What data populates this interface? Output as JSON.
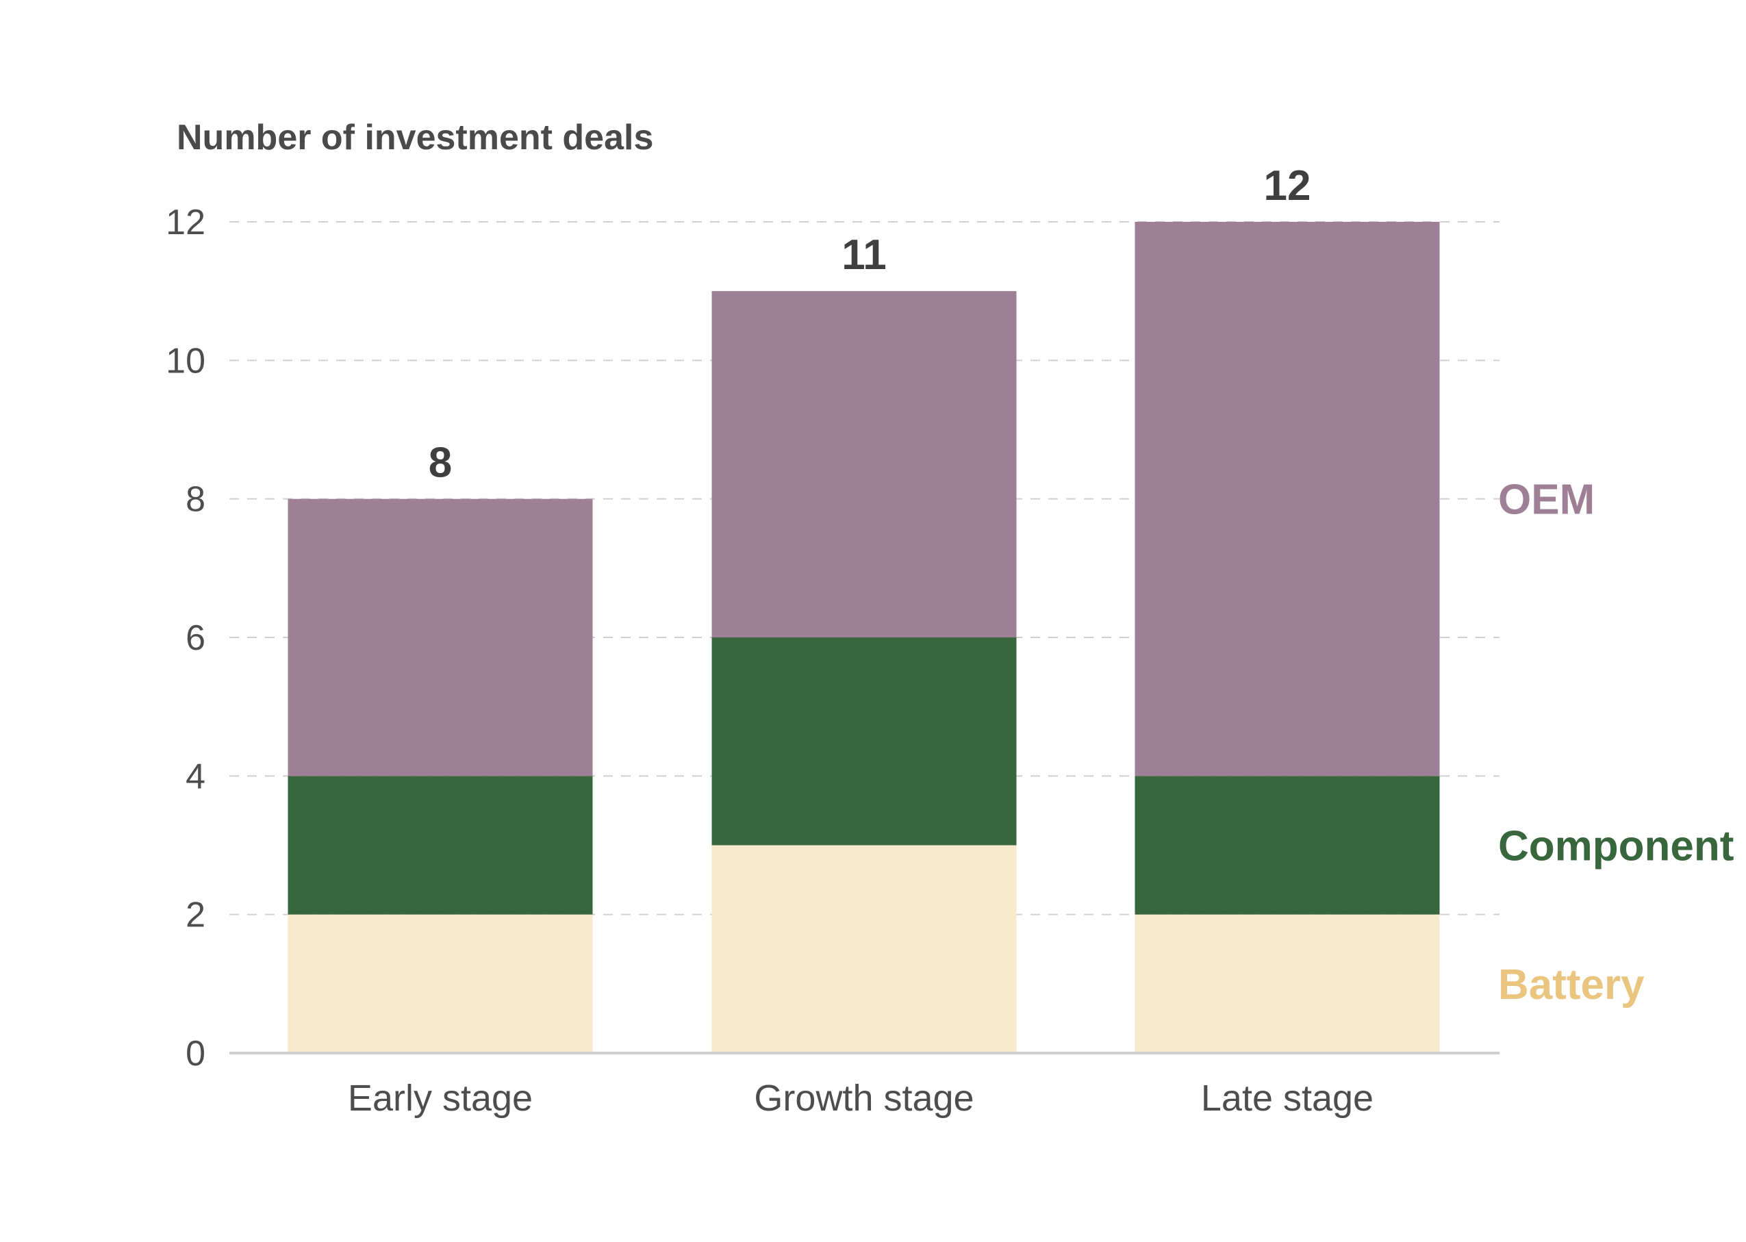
{
  "chart_data": {
    "type": "bar",
    "stacked": true,
    "ylabel": "Number of investment deals",
    "xlabel": "",
    "categories": [
      "Early stage",
      "Growth stage",
      "Late stage"
    ],
    "series": [
      {
        "name": "Battery",
        "values": [
          2,
          3,
          2
        ],
        "color": "#f7e9cb",
        "label_color": "#e9c57f"
      },
      {
        "name": "Component",
        "values": [
          2,
          3,
          2
        ],
        "color": "#39673d",
        "label_color": "#39673d"
      },
      {
        "name": "OEM",
        "values": [
          4,
          5,
          8
        ],
        "color": "#9f7f95",
        "label_color": "#9f7f95"
      }
    ],
    "totals": [
      "8",
      "11",
      "12"
    ],
    "ylim": [
      0,
      12
    ],
    "yticks": [
      "0",
      "2",
      "4",
      "6",
      "8",
      "10",
      "12"
    ],
    "grid": true,
    "legend": "right"
  }
}
